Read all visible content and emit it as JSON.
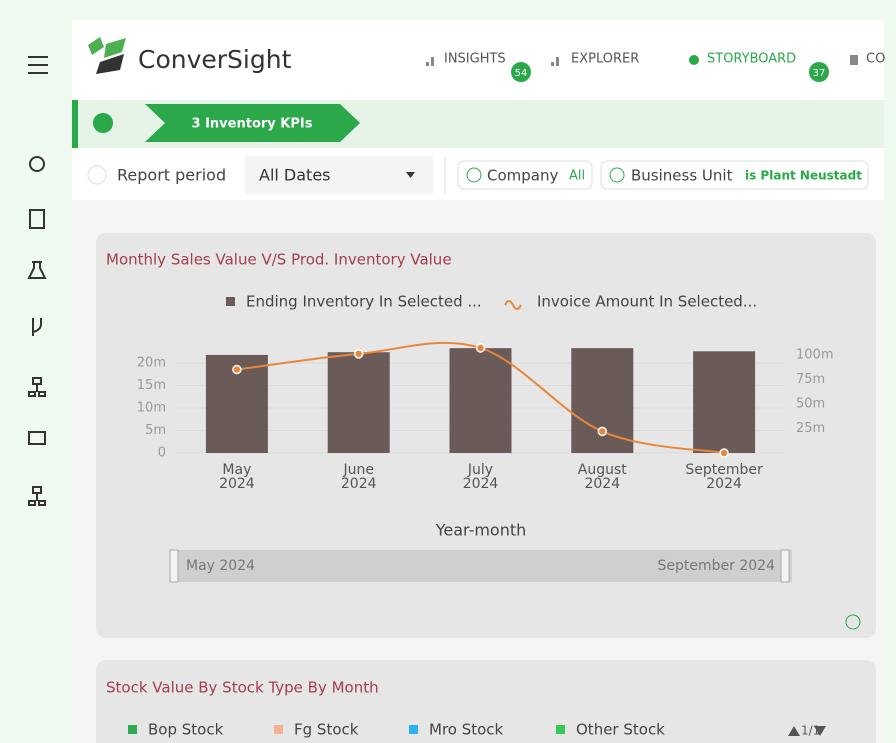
{
  "header": {
    "brand": "ConverSight",
    "nav": [
      {
        "label": "INSIGHTS",
        "badge": 54
      },
      {
        "label": "EXPLORER"
      },
      {
        "label": "STORYBOARD",
        "badge": 37
      },
      {
        "label": "CO"
      }
    ]
  },
  "breadcrumb": "3 Inventory KPIs",
  "filters": {
    "report_period": "Report period",
    "date": "All Dates",
    "chips": [
      {
        "name": "Company",
        "value": "All"
      },
      {
        "name": "Business Unit",
        "value": "is Plant Neustadt"
      }
    ]
  },
  "chart_data": {
    "type": "bar",
    "title": "Monthly Sales Value V/S Prod. Inventory Value",
    "x_label": "Year-month",
    "categories": [
      "May 2024",
      "June 2024",
      "July 2024",
      "August 2024",
      "September 2024"
    ],
    "series": [
      {
        "name": "Ending Inventory In Selected ...",
        "color": "#6b5b58",
        "type": "bar",
        "values": [
          21800000,
          22400000,
          23300000,
          23300000,
          22600000
        ]
      },
      {
        "name": "Invoice Amount In Selected...",
        "color": "#e8873a",
        "type": "line",
        "axis": "y2",
        "values": [
          85000000,
          101000000,
          107000000,
          22000000,
          0
        ]
      }
    ],
    "ylim": [
      0,
      24000000
    ],
    "yticks": [
      {
        "value": 0,
        "label": "0"
      },
      {
        "value": 5000000,
        "label": "5m"
      },
      {
        "value": 10000000,
        "label": "10m"
      },
      {
        "value": 15000000,
        "label": "15m"
      },
      {
        "value": 20000000,
        "label": "20m"
      }
    ],
    "y2lim": [
      0,
      110000000
    ],
    "y2ticks": [
      {
        "value": 25000000,
        "label": "25m"
      },
      {
        "value": 50000000,
        "label": "50m"
      },
      {
        "value": 75000000,
        "label": "75m"
      },
      {
        "value": 100000000,
        "label": "100m"
      }
    ],
    "grid": true
  },
  "second_card": {
    "title": "Stock Value By Stock Type By Month",
    "legend": [
      {
        "name": "Bop Stock",
        "color": "#2eaa4f"
      },
      {
        "name": "Fg Stock",
        "color": "#f6b28c"
      },
      {
        "name": "Mro Stock",
        "color": "#2bb4f0"
      },
      {
        "name": "Other Stock",
        "color": "#36c95a"
      }
    ],
    "pager": "1/1"
  }
}
